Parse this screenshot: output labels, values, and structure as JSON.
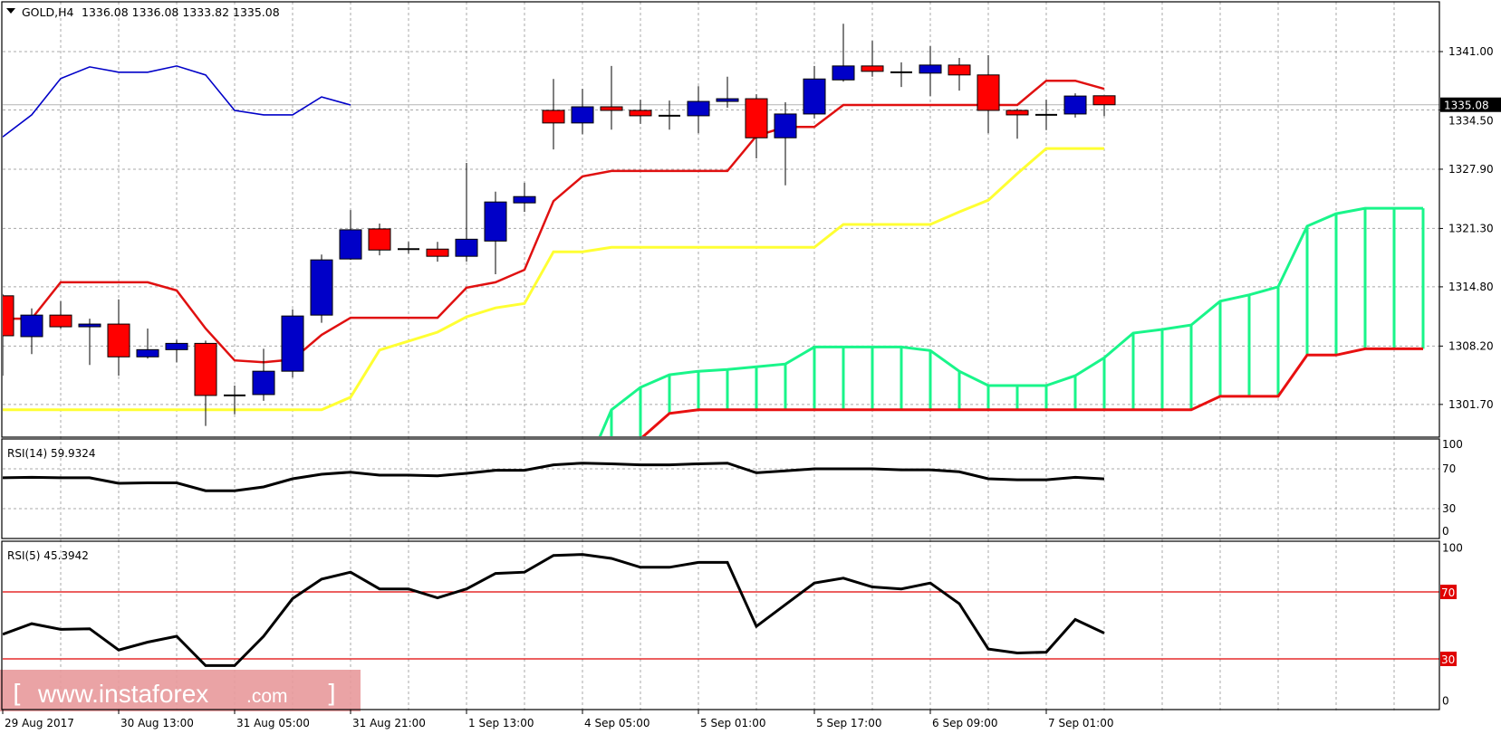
{
  "header": {
    "menu_icon": "triangle-down-icon",
    "symbol": "GOLD,H4",
    "ohlc": "1336.08 1336.08 1333.82 1335.08"
  },
  "price_axis": {
    "labels": [
      "1341.00",
      "1334.50",
      "1327.90",
      "1321.30",
      "1314.80",
      "1308.20",
      "1301.70"
    ],
    "levels": [
      1341.0,
      1334.5,
      1327.9,
      1321.3,
      1314.8,
      1308.2,
      1301.7
    ],
    "current_price_label": "1335.08",
    "current_price": 1335.08
  },
  "time_axis": {
    "labels": [
      "29 Aug 2017",
      "30 Aug 13:00",
      "31 Aug 05:00",
      "31 Aug 21:00",
      "1 Sep 13:00",
      "4 Sep 05:00",
      "5 Sep 01:00",
      "5 Sep 17:00",
      "6 Sep 09:00",
      "7 Sep 01:00"
    ]
  },
  "colors": {
    "bull": "#0000c8",
    "bear": "#ff0000",
    "tenkan": "#e01010",
    "kijun": "#ffff33",
    "chikou": "#0000c8",
    "senkou_a": "#19f58a",
    "senkou_b": "#e81010",
    "grid": "#a8a8a8",
    "rsi_level": "#e00000",
    "watermark_bg": "#e8999b"
  },
  "chart_data": [
    {
      "type": "candlestick",
      "title": "GOLD,H4",
      "ylim": [
        1298.0,
        1346.5
      ],
      "candles_ohlc": [
        [
          1313.8,
          1314.0,
          1304.9,
          1309.35
        ],
        [
          1309.25,
          1312.4,
          1307.3,
          1311.65
        ],
        [
          1311.65,
          1313.2,
          1310.15,
          1310.35
        ],
        [
          1310.35,
          1311.25,
          1306.1,
          1310.65
        ],
        [
          1310.65,
          1313.4,
          1304.9,
          1307.0
        ],
        [
          1307.0,
          1310.15,
          1306.8,
          1307.8
        ],
        [
          1307.8,
          1308.9,
          1306.4,
          1308.5
        ],
        [
          1308.5,
          1308.8,
          1299.3,
          1302.7
        ],
        [
          1302.7,
          1303.8,
          1300.6,
          1302.7
        ],
        [
          1302.8,
          1307.9,
          1302.1,
          1305.4
        ],
        [
          1305.4,
          1312.3,
          1304.7,
          1311.55
        ],
        [
          1311.65,
          1318.4,
          1310.8,
          1317.8
        ],
        [
          1317.9,
          1323.35,
          1317.8,
          1321.15
        ],
        [
          1321.25,
          1321.85,
          1318.3,
          1318.9
        ],
        [
          1319.0,
          1319.8,
          1318.5,
          1319.0
        ],
        [
          1319.0,
          1319.8,
          1317.6,
          1318.2
        ],
        [
          1318.2,
          1328.6,
          1317.6,
          1320.1
        ],
        [
          1319.9,
          1325.4,
          1316.2,
          1324.25
        ],
        [
          1324.15,
          1326.4,
          1323.15,
          1324.85
        ],
        [
          1334.45,
          1337.95,
          1330.1,
          1333.05
        ],
        [
          1333.05,
          1336.85,
          1331.8,
          1334.85
        ],
        [
          1334.85,
          1339.4,
          1332.3,
          1334.45
        ],
        [
          1334.45,
          1335.65,
          1332.95,
          1333.85
        ],
        [
          1333.85,
          1335.55,
          1332.3,
          1333.85
        ],
        [
          1333.85,
          1337.15,
          1331.9,
          1335.45
        ],
        [
          1335.45,
          1338.2,
          1334.75,
          1335.75
        ],
        [
          1335.75,
          1336.25,
          1329.1,
          1331.4
        ],
        [
          1331.4,
          1335.35,
          1326.1,
          1334.05
        ],
        [
          1334.05,
          1339.4,
          1333.55,
          1337.95
        ],
        [
          1337.85,
          1344.1,
          1337.65,
          1339.4
        ],
        [
          1339.4,
          1342.2,
          1338.2,
          1338.8
        ],
        [
          1338.7,
          1339.8,
          1337.05,
          1338.7
        ],
        [
          1338.6,
          1341.6,
          1336.05,
          1339.5
        ],
        [
          1339.5,
          1340.3,
          1336.65,
          1338.4
        ],
        [
          1338.4,
          1340.6,
          1331.9,
          1334.45
        ],
        [
          1334.45,
          1334.65,
          1331.3,
          1333.95
        ],
        [
          1333.95,
          1335.65,
          1332.25,
          1333.95
        ],
        [
          1334.05,
          1336.35,
          1333.65,
          1336.05
        ],
        [
          1336.08,
          1336.08,
          1333.82,
          1335.08
        ]
      ],
      "ichimoku": {
        "tenkan": [
          1311.25,
          1311.25,
          1315.3,
          1315.3,
          1315.3,
          1315.3,
          1314.4,
          1310.15,
          1306.6,
          1306.4,
          1306.7,
          1309.45,
          1311.35,
          1311.35,
          1311.35,
          1311.35,
          1314.7,
          1315.3,
          1316.7,
          1324.35,
          1327.1,
          1327.7,
          1327.7,
          1327.7,
          1327.7,
          1327.7,
          1331.6,
          1332.6,
          1332.6,
          1335.05,
          1335.05,
          1335.05,
          1335.05,
          1335.05,
          1335.05,
          1335.05,
          1337.75,
          1337.75,
          1336.85
        ],
        "kijun": [
          1301.1,
          1301.1,
          1301.1,
          1301.1,
          1301.1,
          1301.1,
          1301.1,
          1301.1,
          1301.1,
          1301.1,
          1301.1,
          1301.1,
          1302.5,
          1307.75,
          1308.75,
          1309.75,
          1311.45,
          1312.45,
          1312.95,
          1318.7,
          1318.7,
          1319.2,
          1319.2,
          1319.2,
          1319.2,
          1319.2,
          1319.2,
          1319.2,
          1319.2,
          1321.75,
          1321.75,
          1321.75,
          1321.75,
          1323.15,
          1324.45,
          1327.4,
          1330.2,
          1330.2,
          1330.2
        ],
        "chikou": [
          1331.5,
          1333.95,
          1338.0,
          1339.3,
          1338.7,
          1338.7,
          1339.4,
          1338.4,
          1334.45,
          1333.95,
          1333.95,
          1335.95,
          1335.05
        ],
        "cloud_start_bar": 20,
        "senkou_a": [
          1293.6,
          1301.1,
          1303.6,
          1305.0,
          1305.4,
          1305.6,
          1305.9,
          1306.2,
          1308.1,
          1308.1,
          1308.1,
          1308.1,
          1307.7,
          1305.4,
          1303.8,
          1303.8,
          1303.8,
          1304.9,
          1306.9,
          1309.65,
          1310.05,
          1310.55,
          1313.2,
          1313.9,
          1314.8,
          1321.55,
          1322.95,
          1323.55,
          1323.55,
          1323.55
        ],
        "senkou_b": [
          1291.8,
          1294.8,
          1297.85,
          1300.7,
          1301.1,
          1301.1,
          1301.1,
          1301.1,
          1301.1,
          1301.1,
          1301.1,
          1301.1,
          1301.1,
          1301.1,
          1301.1,
          1301.1,
          1301.1,
          1301.1,
          1301.1,
          1301.1,
          1301.1,
          1301.1,
          1302.6,
          1302.6,
          1302.6,
          1307.2,
          1307.2,
          1307.9,
          1307.9,
          1307.9
        ]
      }
    },
    {
      "type": "line",
      "title": "RSI(14) 59.9324",
      "ylim": [
        0,
        100
      ],
      "tick_labels": [
        "100",
        "70",
        "30",
        "0"
      ],
      "values": [
        61,
        61.5,
        61,
        61,
        55.5,
        55.9,
        55.9,
        48,
        48,
        51.8,
        60,
        64.5,
        66.6,
        63.6,
        63.6,
        63,
        65.5,
        68.5,
        68.5,
        74,
        75.7,
        75,
        74,
        74,
        75,
        75.7,
        66,
        67.9,
        70,
        70,
        70,
        69,
        69,
        67,
        60,
        59,
        59,
        61.5,
        59.93
      ]
    },
    {
      "type": "line",
      "title": "RSI(5) 45.3942",
      "ylim": [
        0,
        100
      ],
      "tick_labels": [
        "100",
        "0"
      ],
      "levels": [
        70,
        30
      ],
      "level_labels": [
        "70",
        "30"
      ],
      "values": [
        44.7,
        51,
        47.6,
        48,
        35.3,
        40,
        43.5,
        26,
        26,
        43.5,
        66,
        77.6,
        81.8,
        71.8,
        71.8,
        66.5,
        71.8,
        81,
        81.8,
        91.8,
        92.4,
        90,
        84.7,
        84.7,
        87.6,
        87.6,
        49.4,
        62.4,
        75.3,
        78.2,
        73,
        71.8,
        75.3,
        63,
        35.9,
        33.5,
        34,
        53.5,
        45.39
      ]
    }
  ],
  "watermark": {
    "open": "[",
    "main": "www.instaforex",
    "suffix": ".com",
    "close": "]"
  }
}
